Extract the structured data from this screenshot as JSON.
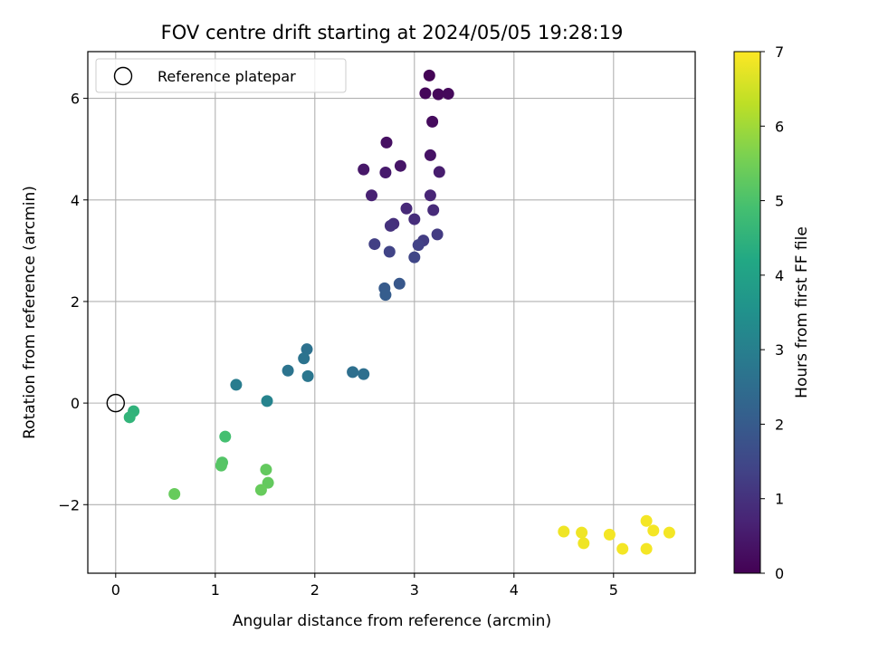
{
  "chart_data": {
    "type": "scatter",
    "title": "FOV centre drift starting at 2024/05/05 19:28:19",
    "xlabel": "Angular distance from reference (arcmin)",
    "ylabel": "Rotation from reference (arcmin)",
    "xlim": [
      -0.28,
      5.82
    ],
    "ylim": [
      -3.35,
      6.92
    ],
    "xticks": [
      0,
      1,
      2,
      3,
      4,
      5
    ],
    "yticks": [
      -2,
      0,
      2,
      4,
      6
    ],
    "ytick_labels": [
      "−2",
      "0",
      "2",
      "4",
      "6"
    ],
    "grid": true,
    "legend": {
      "position": "upper-left",
      "entries": [
        "Reference platepar"
      ]
    },
    "reference_point": {
      "x": 0,
      "y": 0,
      "label": "Reference platepar"
    },
    "colorbar": {
      "label": "Hours from first FF file",
      "colormap": "viridis",
      "range": [
        0,
        7
      ],
      "ticks": [
        0,
        1,
        2,
        3,
        4,
        5,
        6,
        7
      ]
    },
    "points": [
      {
        "x": 3.15,
        "y": 6.45,
        "h": 0.05
      },
      {
        "x": 3.11,
        "y": 6.1,
        "h": 0.1
      },
      {
        "x": 3.24,
        "y": 6.08,
        "h": 0.12
      },
      {
        "x": 3.34,
        "y": 6.09,
        "h": 0.15
      },
      {
        "x": 3.18,
        "y": 5.54,
        "h": 0.2
      },
      {
        "x": 2.72,
        "y": 5.13,
        "h": 0.3
      },
      {
        "x": 3.16,
        "y": 4.88,
        "h": 0.35
      },
      {
        "x": 2.86,
        "y": 4.67,
        "h": 0.4
      },
      {
        "x": 2.49,
        "y": 4.6,
        "h": 0.45
      },
      {
        "x": 2.71,
        "y": 4.54,
        "h": 0.5
      },
      {
        "x": 3.25,
        "y": 4.55,
        "h": 0.55
      },
      {
        "x": 2.57,
        "y": 4.09,
        "h": 0.65
      },
      {
        "x": 3.16,
        "y": 4.09,
        "h": 0.75
      },
      {
        "x": 2.92,
        "y": 3.83,
        "h": 0.8
      },
      {
        "x": 3.19,
        "y": 3.8,
        "h": 0.85
      },
      {
        "x": 3.0,
        "y": 3.62,
        "h": 0.9
      },
      {
        "x": 2.79,
        "y": 3.53,
        "h": 0.95
      },
      {
        "x": 2.76,
        "y": 3.49,
        "h": 1.0
      },
      {
        "x": 3.23,
        "y": 3.32,
        "h": 1.2
      },
      {
        "x": 3.09,
        "y": 3.2,
        "h": 1.25
      },
      {
        "x": 2.6,
        "y": 3.13,
        "h": 1.3
      },
      {
        "x": 3.04,
        "y": 3.11,
        "h": 1.35
      },
      {
        "x": 2.75,
        "y": 2.98,
        "h": 1.4
      },
      {
        "x": 3.0,
        "y": 2.87,
        "h": 1.45
      },
      {
        "x": 2.85,
        "y": 2.35,
        "h": 1.9
      },
      {
        "x": 2.7,
        "y": 2.26,
        "h": 2.0
      },
      {
        "x": 2.71,
        "y": 2.13,
        "h": 2.05
      },
      {
        "x": 1.92,
        "y": 1.06,
        "h": 2.6
      },
      {
        "x": 1.89,
        "y": 0.88,
        "h": 2.65
      },
      {
        "x": 1.73,
        "y": 0.64,
        "h": 2.7
      },
      {
        "x": 2.38,
        "y": 0.61,
        "h": 2.55
      },
      {
        "x": 2.49,
        "y": 0.57,
        "h": 2.55
      },
      {
        "x": 1.93,
        "y": 0.53,
        "h": 2.75
      },
      {
        "x": 1.21,
        "y": 0.36,
        "h": 2.9
      },
      {
        "x": 1.52,
        "y": 0.04,
        "h": 3.1
      },
      {
        "x": 0.18,
        "y": -0.16,
        "h": 4.5
      },
      {
        "x": 0.14,
        "y": -0.28,
        "h": 4.55
      },
      {
        "x": 1.1,
        "y": -0.66,
        "h": 4.9
      },
      {
        "x": 1.07,
        "y": -1.17,
        "h": 5.1
      },
      {
        "x": 1.06,
        "y": -1.23,
        "h": 5.15
      },
      {
        "x": 1.51,
        "y": -1.31,
        "h": 5.3
      },
      {
        "x": 1.53,
        "y": -1.57,
        "h": 5.3
      },
      {
        "x": 1.46,
        "y": -1.71,
        "h": 5.35
      },
      {
        "x": 0.59,
        "y": -1.79,
        "h": 5.35
      },
      {
        "x": 5.33,
        "y": -2.32,
        "h": 6.9
      },
      {
        "x": 4.5,
        "y": -2.53,
        "h": 6.85
      },
      {
        "x": 4.68,
        "y": -2.55,
        "h": 6.85
      },
      {
        "x": 5.4,
        "y": -2.51,
        "h": 6.9
      },
      {
        "x": 5.56,
        "y": -2.55,
        "h": 6.9
      },
      {
        "x": 4.96,
        "y": -2.59,
        "h": 6.9
      },
      {
        "x": 4.7,
        "y": -2.76,
        "h": 6.85
      },
      {
        "x": 5.09,
        "y": -2.87,
        "h": 6.9
      },
      {
        "x": 5.33,
        "y": -2.87,
        "h": 6.9
      }
    ]
  }
}
